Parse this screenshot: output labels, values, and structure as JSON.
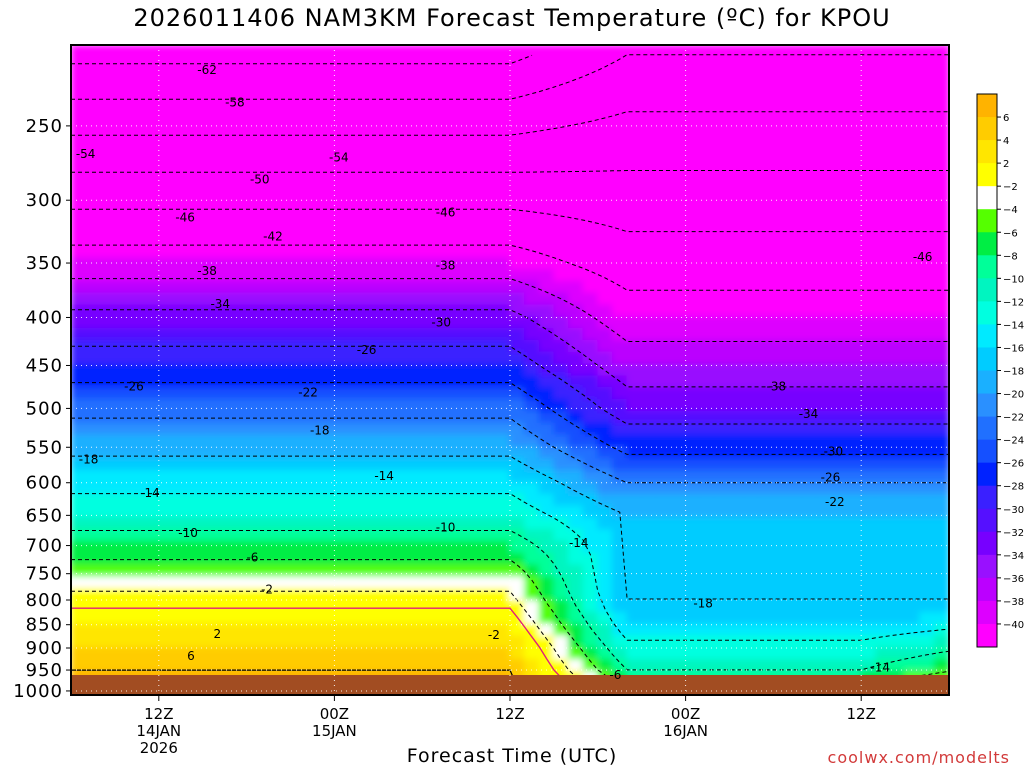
{
  "chart_data": {
    "type": "heatmap",
    "title": "2026011406 NAM3KM Forecast Temperature (ºC) for KPOU",
    "xlabel": "Forecast Time (UTC)",
    "ylabel": "",
    "y_scale": "log",
    "ylim": [
      1010,
      205
    ],
    "y_ticks": [
      250,
      300,
      350,
      400,
      450,
      500,
      550,
      600,
      650,
      700,
      750,
      800,
      850,
      900,
      950,
      1000
    ],
    "x_range_hours": [
      0,
      60
    ],
    "x_ticks": [
      {
        "hour": 6,
        "label": [
          "12Z",
          "14JAN",
          "2026"
        ]
      },
      {
        "hour": 18,
        "label": [
          "00Z",
          "15JAN"
        ]
      },
      {
        "hour": 30,
        "label": [
          "12Z"
        ]
      },
      {
        "hour": 42,
        "label": [
          "00Z",
          "16JAN"
        ]
      },
      {
        "hour": 54,
        "label": [
          "12Z"
        ]
      }
    ],
    "grid": true,
    "colorbar": {
      "placement": "right",
      "levels": [
        6,
        4,
        2,
        -2,
        -4,
        -6,
        -8,
        -10,
        -12,
        -14,
        -16,
        -18,
        -20,
        -22,
        -24,
        -26,
        -28,
        -30,
        -32,
        -34,
        -36,
        -38,
        -40
      ],
      "colors": [
        "#ffb300",
        "#ffcc00",
        "#ffe600",
        "#ffff00",
        "#ffffff",
        "#55ff00",
        "#00ee44",
        "#00ff99",
        "#00f5c0",
        "#00ffe0",
        "#00eaff",
        "#00ccff",
        "#1ab0ff",
        "#2a90ff",
        "#2070ff",
        "#1550ff",
        "#0022ff",
        "#3a20ff",
        "#5510ff",
        "#7700ff",
        "#9910ff",
        "#bb00ff",
        "#dd00ff",
        "#ff00ff"
      ]
    },
    "contour_labels": [
      {
        "text": "-62",
        "hour": 9.3,
        "p": 218
      },
      {
        "text": "-58",
        "hour": 11.2,
        "p": 236
      },
      {
        "text": "-54",
        "hour": 1.0,
        "p": 268
      },
      {
        "text": "-54",
        "hour": 18.3,
        "p": 270
      },
      {
        "text": "-50",
        "hour": 12.9,
        "p": 285
      },
      {
        "text": "-46",
        "hour": 7.8,
        "p": 313
      },
      {
        "text": "-46",
        "hour": 25.6,
        "p": 309
      },
      {
        "text": "-46",
        "hour": 58.2,
        "p": 345
      },
      {
        "text": "-42",
        "hour": 13.8,
        "p": 328
      },
      {
        "text": "-38",
        "hour": 9.3,
        "p": 357
      },
      {
        "text": "-38",
        "hour": 25.6,
        "p": 352
      },
      {
        "text": "-38",
        "hour": 48.2,
        "p": 474
      },
      {
        "text": "-34",
        "hour": 10.2,
        "p": 387
      },
      {
        "text": "-34",
        "hour": 50.4,
        "p": 507
      },
      {
        "text": "-30",
        "hour": 25.3,
        "p": 405
      },
      {
        "text": "-30",
        "hour": 52.1,
        "p": 556
      },
      {
        "text": "-26",
        "hour": 4.3,
        "p": 474
      },
      {
        "text": "-26",
        "hour": 20.2,
        "p": 433
      },
      {
        "text": "-26",
        "hour": 51.9,
        "p": 592
      },
      {
        "text": "-22",
        "hour": 16.2,
        "p": 481
      },
      {
        "text": "-22",
        "hour": 52.2,
        "p": 629
      },
      {
        "text": "-18",
        "hour": 1.2,
        "p": 567
      },
      {
        "text": "-18",
        "hour": 17.0,
        "p": 528
      },
      {
        "text": "-18",
        "hour": 43.2,
        "p": 807
      },
      {
        "text": "-14",
        "hour": 5.4,
        "p": 615
      },
      {
        "text": "-14",
        "hour": 21.4,
        "p": 590
      },
      {
        "text": "-14",
        "hour": 34.7,
        "p": 696
      },
      {
        "text": "-14",
        "hour": 55.3,
        "p": 944
      },
      {
        "text": "-10",
        "hour": 8.0,
        "p": 679
      },
      {
        "text": "-10",
        "hour": 25.6,
        "p": 670
      },
      {
        "text": "-6",
        "hour": 12.4,
        "p": 721
      },
      {
        "text": "-6",
        "hour": 37.2,
        "p": 962
      },
      {
        "text": "-2",
        "hour": 13.4,
        "p": 780
      },
      {
        "text": "-2",
        "hour": 28.9,
        "p": 872
      },
      {
        "text": "2",
        "hour": 10.0,
        "p": 870
      },
      {
        "text": "6",
        "hour": 8.2,
        "p": 918
      }
    ]
  },
  "labels": {
    "title": "2026011406 NAM3KM Forecast Temperature (ºC) for KPOU",
    "xlabel": "Forecast Time (UTC)",
    "credit": "coolwx.com/modelts"
  }
}
